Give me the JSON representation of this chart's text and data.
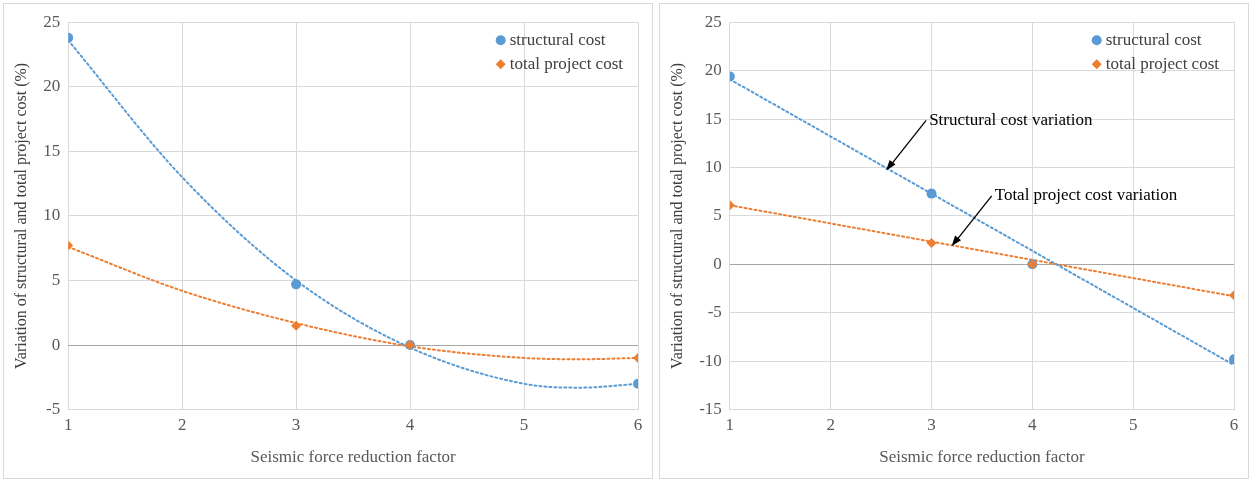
{
  "chart_data": [
    {
      "type": "scatter",
      "xlabel": "Seismic force reduction factor",
      "ylabel": "Variation of structural and total project cost (%)",
      "xlim": [
        1,
        6
      ],
      "xticks": [
        1,
        2,
        3,
        4,
        5,
        6
      ],
      "ylim": [
        -5,
        25
      ],
      "yticks": [
        -5,
        0,
        5,
        10,
        15,
        20,
        25
      ],
      "grid": true,
      "legend": "top right",
      "series": [
        {
          "name": "structural cost",
          "color": "#5b9bd5",
          "marker": "circle",
          "x": [
            1,
            3,
            4,
            6
          ],
          "values": [
            23.8,
            4.7,
            0,
            -3
          ]
        },
        {
          "name": "total project cost",
          "color": "#ed7d31",
          "marker": "diamond",
          "x": [
            1,
            3,
            4,
            6
          ],
          "values": [
            7.7,
            1.5,
            0,
            -1
          ]
        },
        {
          "type": "line",
          "color": "#5b9bd5",
          "line_style": "dotted",
          "marker": "none",
          "x": [
            1,
            2,
            3,
            4,
            5,
            5.5,
            6
          ],
          "values": [
            23.6,
            13,
            5,
            -0.2,
            -3,
            -3.3,
            -3
          ]
        },
        {
          "type": "line",
          "color": "#ed7d31",
          "line_style": "dotted",
          "marker": "none",
          "x": [
            1,
            2,
            3,
            4,
            5,
            5.5,
            6
          ],
          "values": [
            7.6,
            4.2,
            1.7,
            -0.1,
            -1,
            -1.1,
            -1
          ]
        }
      ]
    },
    {
      "type": "scatter",
      "xlabel": "Seismic force reduction factor",
      "ylabel": "Variation of structural and total project cost (%)",
      "xlim": [
        1,
        6
      ],
      "xticks": [
        1,
        2,
        3,
        4,
        5,
        6
      ],
      "ylim": [
        -15,
        25
      ],
      "yticks": [
        -15,
        -10,
        -5,
        0,
        5,
        10,
        15,
        20,
        25
      ],
      "grid": true,
      "legend": "top right",
      "series": [
        {
          "name": "structural cost",
          "color": "#5b9bd5",
          "marker": "circle",
          "x": [
            1,
            3,
            4,
            6
          ],
          "values": [
            19.4,
            7.3,
            0,
            -9.8
          ]
        },
        {
          "name": "total project cost",
          "color": "#ed7d31",
          "marker": "diamond",
          "x": [
            1,
            3,
            4,
            6
          ],
          "values": [
            6.1,
            2.2,
            0,
            -3.2
          ]
        },
        {
          "type": "line",
          "color": "#5b9bd5",
          "line_style": "dotted",
          "marker": "none",
          "x": [
            1,
            6
          ],
          "values": [
            19.1,
            -10.4
          ]
        },
        {
          "type": "line",
          "color": "#ed7d31",
          "line_style": "dotted",
          "marker": "none",
          "x": [
            1,
            6
          ],
          "values": [
            6.1,
            -3.3
          ]
        }
      ],
      "annotations": [
        {
          "text": "Structural cost variation",
          "x": 2.55,
          "y": 9.7
        },
        {
          "text": "Total project cost variation",
          "x": 3.2,
          "y": 1.9
        }
      ]
    }
  ]
}
